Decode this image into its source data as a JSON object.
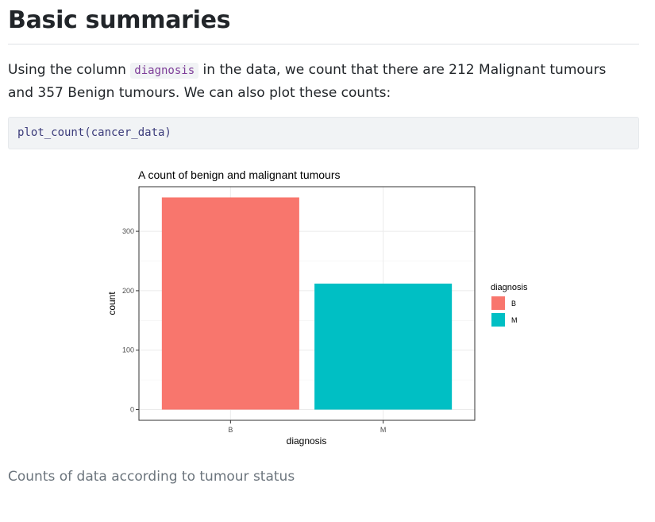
{
  "page": {
    "heading": "Basic summaries",
    "paragraph": {
      "before": "Using the column ",
      "code": "diagnosis",
      "after": " in the data, we count that there are 212 Malignant tumours and 357 Benign tumours. We can also plot these counts:"
    },
    "code_block": "plot_count(cancer_data)",
    "caption": "Counts of data according to tumour status"
  },
  "chart_data": {
    "type": "bar",
    "title": "A count of benign and malignant tumours",
    "xlabel": "diagnosis",
    "ylabel": "count",
    "categories": [
      "B",
      "M"
    ],
    "values": [
      357,
      212
    ],
    "colors": [
      "#F8766D",
      "#00BFC4"
    ],
    "ylim": [
      -18,
      375
    ],
    "yticks": [
      0,
      100,
      200,
      300
    ],
    "grid": true,
    "legend": {
      "title": "diagnosis",
      "position": "right",
      "entries": [
        "B",
        "M"
      ]
    }
  }
}
